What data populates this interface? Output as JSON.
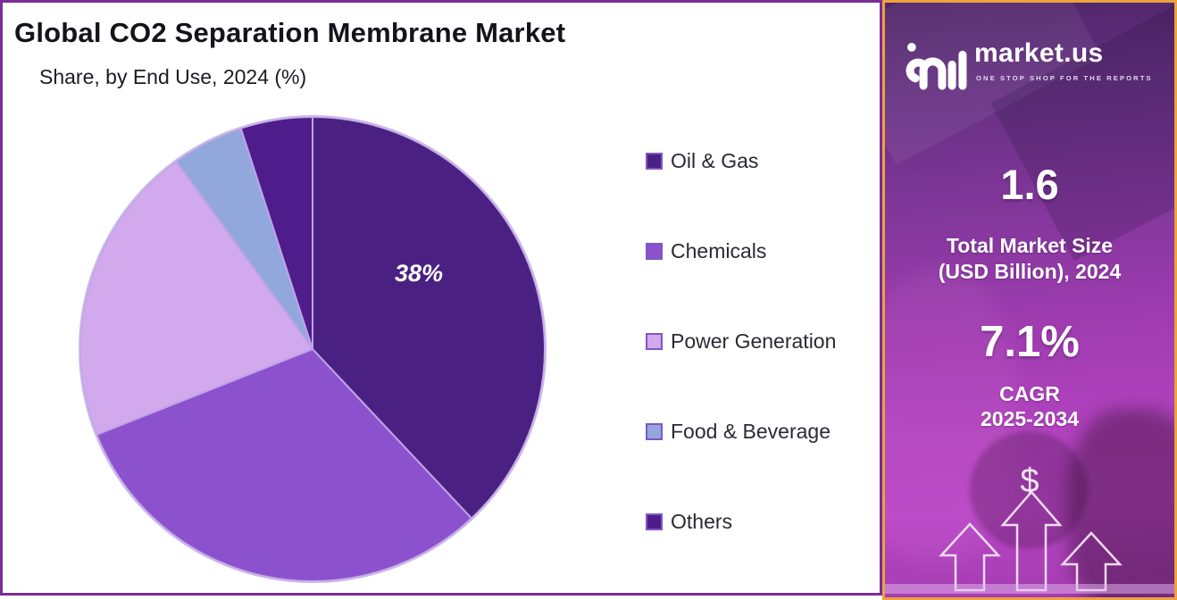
{
  "header": {
    "title": "Global CO2 Separation Membrane Market",
    "subtitle": "Share, by End Use, 2024 (%)"
  },
  "chart_data": {
    "type": "pie",
    "title": "Global CO2 Separation Membrane Market",
    "subtitle": "Share, by End Use, 2024 (%)",
    "unit": "%",
    "categories": [
      "Oil & Gas",
      "Chemicals",
      "Power Generation",
      "Food & Beverage",
      "Others"
    ],
    "values": [
      38,
      31,
      21,
      5,
      5
    ],
    "colors": [
      "#4A2182",
      "#8C52CE",
      "#D2A9EC",
      "#92A8DC",
      "#4F1C8C"
    ],
    "start_angle_deg_from_top": 0,
    "direction": "clockwise",
    "labeled_category": "Oil & Gas",
    "inner_label": "38%",
    "legend_position": "right",
    "slice_stroke_color": "#BFA3E8"
  },
  "sidebar": {
    "brand": "market.us",
    "tagline": "ONE STOP SHOP FOR THE REPORTS",
    "market_size_value": "1.6",
    "market_size_label_line1": "Total Market Size",
    "market_size_label_line2": "(USD Billion), 2024",
    "cagr_value": "7.1%",
    "cagr_label_line1": "CAGR",
    "cagr_label_line2": "2025-2034",
    "dollar_symbol": "$",
    "border_color": "#EDA23E"
  },
  "panel": {
    "border_color": "#7A2D95"
  }
}
